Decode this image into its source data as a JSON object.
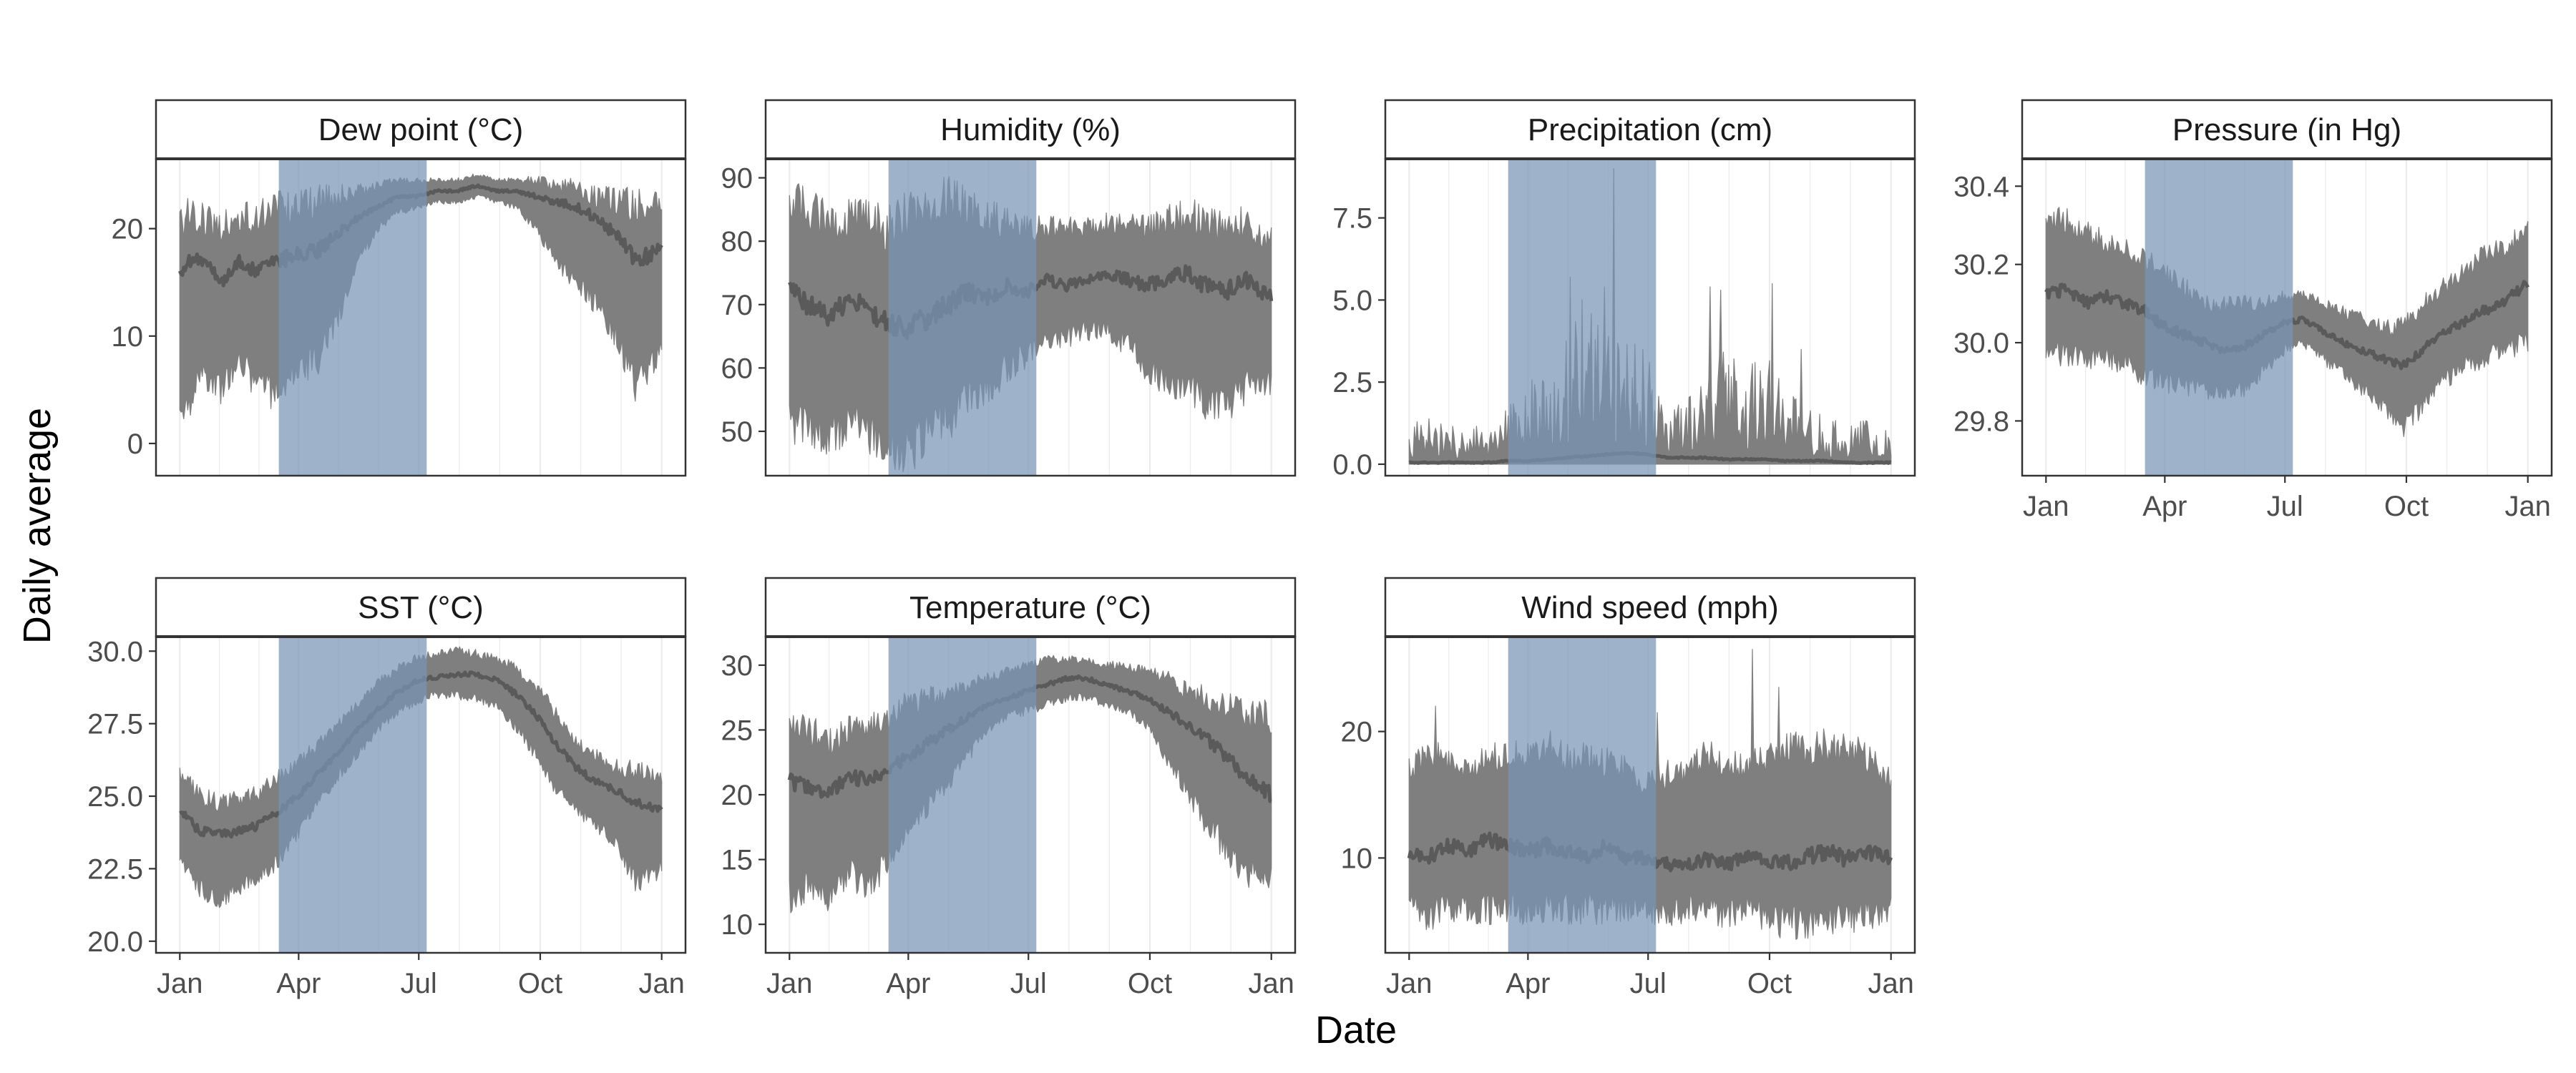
{
  "colors": {
    "band": "#7f7f7f",
    "line": "#5a5a5a",
    "highlight": "#7895b5",
    "strip_fill": "#ffffff",
    "border": "#333333",
    "grid": "#ebebeb"
  },
  "chart_data": {
    "type": "area",
    "layout": "facet_wrap 4 columns, free y scales",
    "xlabel": "Date",
    "ylabel": "Daily average",
    "x_range_days": [
      0,
      365
    ],
    "x_ticks": [
      {
        "day": 0,
        "label": "Jan"
      },
      {
        "day": 90,
        "label": "Apr"
      },
      {
        "day": 181,
        "label": "Jul"
      },
      {
        "day": 273,
        "label": "Oct"
      },
      {
        "day": 365,
        "label": "Jan"
      }
    ],
    "highlight_period_days": [
      75,
      187
    ],
    "series_note": "band = daily min-max range across years; line = daily average; values are day-of-year checkpoints",
    "facets": [
      {
        "title": "Dew point (°C)",
        "ylim": [
          -3,
          26.5
        ],
        "yticks": [
          0,
          10,
          20
        ],
        "ytick_labels": [
          "0",
          "10",
          "20"
        ],
        "day": [
          0,
          15,
          30,
          45,
          60,
          75,
          90,
          105,
          120,
          135,
          150,
          165,
          180,
          195,
          210,
          225,
          240,
          255,
          270,
          285,
          300,
          315,
          330,
          345,
          365
        ],
        "mean": [
          16,
          17.5,
          15,
          17,
          16,
          17,
          17.5,
          18,
          19.5,
          21,
          22,
          23,
          23,
          23.5,
          23.5,
          24,
          23.5,
          23.5,
          23,
          22.5,
          22,
          21,
          19.5,
          17,
          18
        ],
        "low": [
          1,
          7,
          5,
          8,
          5,
          5,
          7,
          8,
          12,
          17,
          20,
          21.5,
          22,
          22.5,
          22.5,
          23,
          22.5,
          22,
          20,
          17,
          15,
          13,
          10,
          5,
          9
        ],
        "high": [
          21,
          21,
          20,
          21,
          21,
          22,
          22,
          22.5,
          23,
          23.5,
          24,
          24.5,
          24.5,
          24.5,
          24.5,
          25,
          24.5,
          24.5,
          24.5,
          24,
          24,
          23,
          22.5,
          22,
          22
        ]
      },
      {
        "title": "Humidity (%)",
        "ylim": [
          43,
          93
        ],
        "yticks": [
          50,
          60,
          70,
          80,
          90
        ],
        "ytick_labels": [
          "50",
          "60",
          "70",
          "80",
          "90"
        ],
        "day": [
          0,
          15,
          30,
          45,
          60,
          75,
          90,
          105,
          120,
          135,
          150,
          165,
          180,
          195,
          210,
          225,
          240,
          255,
          270,
          285,
          300,
          315,
          330,
          345,
          365
        ],
        "mean": [
          72,
          70,
          68,
          71,
          69,
          67,
          66,
          68,
          70,
          72,
          71,
          73,
          72,
          74,
          73,
          74,
          75,
          74,
          73,
          74,
          75,
          73,
          72,
          74,
          71
        ],
        "low": [
          52,
          50,
          49,
          52,
          50,
          48,
          47,
          50,
          52,
          55,
          57,
          60,
          62,
          64,
          65,
          66,
          66,
          64,
          60,
          58,
          57,
          55,
          54,
          57,
          58
        ],
        "high": [
          86,
          85,
          83,
          84,
          83,
          82,
          84,
          86,
          87,
          85,
          84,
          83,
          82,
          82,
          82,
          82,
          83,
          83,
          82,
          83,
          84,
          83,
          82,
          83,
          80
        ]
      },
      {
        "title": "Precipitation (cm)",
        "ylim": [
          -0.35,
          9.3
        ],
        "yticks": [
          0,
          2.5,
          5,
          7.5
        ],
        "ytick_labels": [
          "0.0",
          "2.5",
          "5.0",
          "7.5"
        ],
        "day": [
          0,
          15,
          30,
          45,
          60,
          75,
          90,
          105,
          120,
          135,
          150,
          165,
          180,
          195,
          210,
          225,
          240,
          255,
          270,
          285,
          300,
          315,
          330,
          345,
          365
        ],
        "mean": [
          0.05,
          0.05,
          0.05,
          0.05,
          0.05,
          0.1,
          0.1,
          0.15,
          0.2,
          0.25,
          0.3,
          0.35,
          0.3,
          0.2,
          0.2,
          0.2,
          0.15,
          0.15,
          0.15,
          0.1,
          0.1,
          0.1,
          0.05,
          0.05,
          0.05
        ],
        "low": [
          0,
          0,
          0,
          0,
          0,
          0,
          0,
          0,
          0,
          0,
          0,
          0,
          0,
          0,
          0,
          0,
          0,
          0,
          0,
          0,
          0,
          0,
          0,
          0,
          0
        ],
        "high": [
          1.2,
          1.5,
          1.2,
          1.3,
          1.0,
          1.8,
          2.5,
          3.0,
          4.0,
          5.5,
          4.5,
          4.0,
          3.5,
          2.0,
          2.0,
          2.5,
          4.5,
          3.0,
          3.5,
          2.5,
          2.0,
          1.5,
          1.2,
          1.5,
          1.0
        ],
        "spikes": [
          {
            "day": 122,
            "value": 5.7
          },
          {
            "day": 148,
            "value": 5.4
          },
          {
            "day": 155,
            "value": 9.0
          },
          {
            "day": 228,
            "value": 5.4
          },
          {
            "day": 236,
            "value": 5.3
          },
          {
            "day": 275,
            "value": 5.5
          },
          {
            "day": 297,
            "value": 3.5
          }
        ]
      },
      {
        "title": "Pressure (in Hg)",
        "ylim": [
          29.66,
          30.47
        ],
        "yticks": [
          29.8,
          30.0,
          30.2,
          30.4
        ],
        "ytick_labels": [
          "29.8",
          "30.0",
          "30.2",
          "30.4"
        ],
        "day": [
          0,
          15,
          30,
          45,
          60,
          75,
          90,
          105,
          120,
          135,
          150,
          165,
          180,
          195,
          210,
          225,
          240,
          255,
          270,
          285,
          300,
          315,
          330,
          345,
          365
        ],
        "mean": [
          30.12,
          30.14,
          30.1,
          30.12,
          30.1,
          30.08,
          30.04,
          30.02,
          30.0,
          29.98,
          29.99,
          30.02,
          30.05,
          30.06,
          30.03,
          30.0,
          29.98,
          29.96,
          29.94,
          29.98,
          30.02,
          30.05,
          30.08,
          30.1,
          30.15
        ],
        "low": [
          29.97,
          29.98,
          29.95,
          29.96,
          29.95,
          29.92,
          29.9,
          29.89,
          29.88,
          29.87,
          29.88,
          29.93,
          29.98,
          30.0,
          29.96,
          29.92,
          29.88,
          29.84,
          29.78,
          29.84,
          29.9,
          29.94,
          29.96,
          29.98,
          30.0
        ],
        "high": [
          30.3,
          30.32,
          30.28,
          30.26,
          30.24,
          30.22,
          30.18,
          30.14,
          30.1,
          30.1,
          30.1,
          30.1,
          30.12,
          30.12,
          30.1,
          30.08,
          30.06,
          30.04,
          30.04,
          30.1,
          30.14,
          30.18,
          30.22,
          30.24,
          30.28
        ]
      },
      {
        "title": "SST (°C)",
        "ylim": [
          19.6,
          30.5
        ],
        "yticks": [
          20,
          22.5,
          25,
          27.5,
          30
        ],
        "ytick_labels": [
          "20.0",
          "22.5",
          "25.0",
          "27.5",
          "30.0"
        ],
        "day": [
          0,
          15,
          30,
          45,
          60,
          75,
          90,
          105,
          120,
          135,
          150,
          165,
          180,
          195,
          210,
          225,
          240,
          255,
          270,
          285,
          300,
          315,
          330,
          345,
          365
        ],
        "mean": [
          24.5,
          23.8,
          23.7,
          23.8,
          24.0,
          24.5,
          25.0,
          25.8,
          26.5,
          27.3,
          28.0,
          28.6,
          29.0,
          29.1,
          29.2,
          29.2,
          29.0,
          28.5,
          27.8,
          26.8,
          26.0,
          25.5,
          25.2,
          24.8,
          24.5
        ],
        "low": [
          23.0,
          21.8,
          21.5,
          21.8,
          22.2,
          22.8,
          23.8,
          24.8,
          25.7,
          26.5,
          27.3,
          27.9,
          28.3,
          28.5,
          28.5,
          28.4,
          28.1,
          27.4,
          26.4,
          25.2,
          24.6,
          24.0,
          23.5,
          22.0,
          22.5
        ],
        "high": [
          25.8,
          25.0,
          24.8,
          24.9,
          25.1,
          25.7,
          26.2,
          26.8,
          27.5,
          28.2,
          28.9,
          29.4,
          29.8,
          29.9,
          30.0,
          29.9,
          29.7,
          29.4,
          28.8,
          27.8,
          26.9,
          26.4,
          26.0,
          25.9,
          25.5
        ]
      },
      {
        "title": "Temperature (°C)",
        "ylim": [
          7.8,
          32.2
        ],
        "yticks": [
          10,
          15,
          20,
          25,
          30
        ],
        "ytick_labels": [
          "10",
          "15",
          "20",
          "25",
          "30"
        ],
        "day": [
          0,
          15,
          30,
          45,
          60,
          75,
          90,
          105,
          120,
          135,
          150,
          165,
          180,
          195,
          210,
          225,
          240,
          255,
          270,
          285,
          300,
          315,
          330,
          345,
          365
        ],
        "mean": [
          21,
          20.5,
          20,
          21.5,
          21,
          22,
          23,
          24,
          25,
          26,
          27,
          27.5,
          28,
          28.5,
          29,
          29,
          28.5,
          28,
          27.5,
          26.5,
          25.5,
          24.5,
          23,
          21.5,
          20
        ],
        "low": [
          12,
          13,
          12,
          14,
          13,
          15,
          17,
          19,
          21,
          23,
          25,
          26,
          26.5,
          27,
          27.5,
          27.5,
          27,
          26.5,
          25.5,
          23,
          20.5,
          18,
          16,
          14,
          14
        ],
        "high": [
          25,
          25,
          24,
          25,
          25,
          26,
          27,
          27.5,
          28,
          28.5,
          29,
          29.5,
          30,
          30.5,
          30.5,
          30.5,
          30,
          30,
          29.5,
          29,
          28,
          27.5,
          27,
          26,
          26
        ]
      },
      {
        "title": "Wind speed (mph)",
        "ylim": [
          2.5,
          27.5
        ],
        "yticks": [
          10,
          20
        ],
        "ytick_labels": [
          "10",
          "20"
        ],
        "day": [
          0,
          15,
          30,
          45,
          60,
          75,
          90,
          105,
          120,
          135,
          150,
          165,
          180,
          195,
          210,
          225,
          240,
          255,
          270,
          285,
          300,
          315,
          330,
          345,
          365
        ],
        "mean": [
          10.5,
          10,
          11,
          10.5,
          11.5,
          11,
          10.5,
          11,
          10.5,
          10,
          11,
          10,
          10,
          9.5,
          9.5,
          10,
          9.5,
          10,
          10,
          9.5,
          10,
          10.5,
          10,
          10.5,
          10
        ],
        "low": [
          6,
          5.5,
          6,
          6,
          6,
          6,
          5.5,
          6,
          6,
          6,
          6,
          6,
          6,
          5.5,
          6,
          6,
          5.5,
          6,
          5.5,
          5,
          5,
          5.5,
          5,
          5.5,
          6
        ],
        "high": [
          17,
          18,
          18,
          17,
          18,
          18,
          18,
          19,
          18,
          18,
          17.5,
          17,
          16,
          16.5,
          17,
          18,
          17.5,
          17,
          18,
          18.5,
          18.5,
          19,
          18.5,
          18,
          16
        ],
        "spikes": [
          {
            "day": 260,
            "value": 26.5
          },
          {
            "day": 280,
            "value": 23.5
          },
          {
            "day": 20,
            "value": 22
          },
          {
            "day": 188,
            "value": 21.5
          }
        ]
      }
    ]
  }
}
